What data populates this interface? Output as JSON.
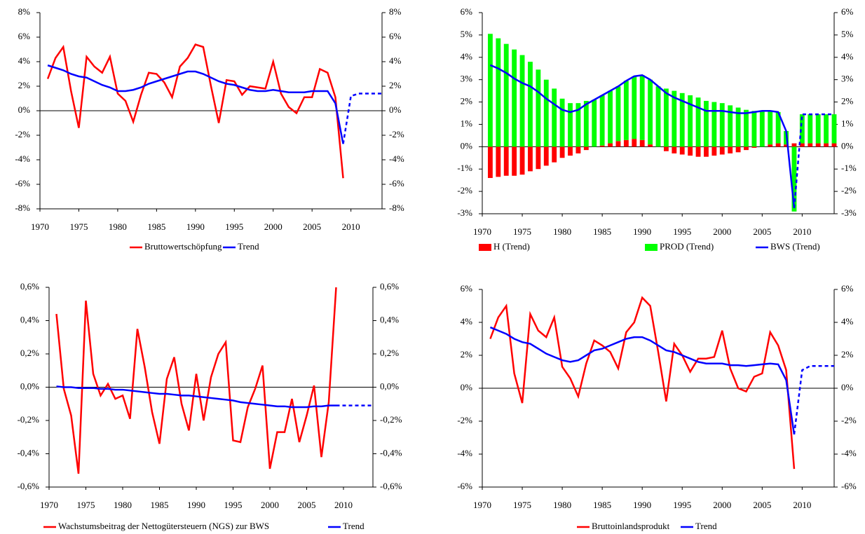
{
  "chart_data": [
    {
      "type": "line",
      "x": [
        1971,
        1972,
        1973,
        1974,
        1975,
        1976,
        1977,
        1978,
        1979,
        1980,
        1981,
        1982,
        1983,
        1984,
        1985,
        1986,
        1987,
        1988,
        1989,
        1990,
        1991,
        1992,
        1993,
        1994,
        1995,
        1996,
        1997,
        1998,
        1999,
        2000,
        2001,
        2002,
        2003,
        2004,
        2005,
        2006,
        2007,
        2008,
        2009,
        2010,
        2011,
        2012,
        2013,
        2014
      ],
      "xlim": [
        1970,
        2014
      ],
      "xticks": [
        1970,
        1975,
        1980,
        1985,
        1990,
        1995,
        2000,
        2005,
        2010
      ],
      "ylim": [
        -8,
        8
      ],
      "yticks": [
        {
          "value": -8,
          "label": "-8%"
        },
        {
          "value": -6,
          "label": "-6%"
        },
        {
          "value": -4,
          "label": "-4%"
        },
        {
          "value": -2,
          "label": "-2%"
        },
        {
          "value": 0,
          "label": "0%"
        },
        {
          "value": 2,
          "label": "2%"
        },
        {
          "value": 4,
          "label": "4%"
        },
        {
          "value": 6,
          "label": "6%"
        },
        {
          "value": 8,
          "label": "8%"
        }
      ],
      "series": [
        {
          "name": "Bruttowertschöpfung",
          "color": "#ff0000",
          "values": [
            2.6,
            4.3,
            5.2,
            1.6,
            -1.4,
            4.4,
            3.6,
            3.1,
            4.4,
            1.4,
            0.8,
            -0.9,
            1.3,
            3.1,
            3.0,
            2.3,
            1.1,
            3.6,
            4.3,
            5.4,
            5.2,
            2.0,
            -1.0,
            2.5,
            2.4,
            1.3,
            2.0,
            1.9,
            1.8,
            4.0,
            1.4,
            0.3,
            -0.2,
            1.1,
            1.1,
            3.4,
            3.1,
            1.1,
            -5.5,
            null,
            null,
            null,
            null,
            null
          ]
        },
        {
          "name": "Trend",
          "color": "#0000ff",
          "dashed_from_x": 2009,
          "values": [
            3.7,
            3.5,
            3.3,
            3.0,
            2.8,
            2.7,
            2.4,
            2.1,
            1.9,
            1.6,
            1.6,
            1.7,
            1.9,
            2.2,
            2.4,
            2.6,
            2.8,
            3.0,
            3.2,
            3.2,
            3.0,
            2.7,
            2.4,
            2.2,
            2.1,
            1.9,
            1.7,
            1.6,
            1.6,
            1.7,
            1.6,
            1.5,
            1.5,
            1.5,
            1.6,
            1.6,
            1.6,
            0.6,
            -2.7,
            1.2,
            1.4,
            1.4,
            1.4,
            1.4
          ]
        }
      ]
    },
    {
      "type": "bar",
      "x": [
        1971,
        1972,
        1973,
        1974,
        1975,
        1976,
        1977,
        1978,
        1979,
        1980,
        1981,
        1982,
        1983,
        1984,
        1985,
        1986,
        1987,
        1988,
        1989,
        1990,
        1991,
        1992,
        1993,
        1994,
        1995,
        1996,
        1997,
        1998,
        1999,
        2000,
        2001,
        2002,
        2003,
        2004,
        2005,
        2006,
        2007,
        2008,
        2009,
        2010,
        2011,
        2012,
        2013,
        2014
      ],
      "xlim": [
        1970,
        2014
      ],
      "xticks": [
        1970,
        1975,
        1980,
        1985,
        1990,
        1995,
        2000,
        2005,
        2010
      ],
      "ylim": [
        -3,
        6
      ],
      "yticks": [
        {
          "value": -3,
          "label": "-3%"
        },
        {
          "value": -2,
          "label": "-2%"
        },
        {
          "value": -1,
          "label": "-1%"
        },
        {
          "value": 0,
          "label": "0%"
        },
        {
          "value": 1,
          "label": "1%"
        },
        {
          "value": 2,
          "label": "2%"
        },
        {
          "value": 3,
          "label": "3%"
        },
        {
          "value": 4,
          "label": "4%"
        },
        {
          "value": 5,
          "label": "5%"
        },
        {
          "value": 6,
          "label": "6%"
        }
      ],
      "series": [
        {
          "name": "H (Trend)",
          "color": "#ff0000",
          "type": "bar",
          "values": [
            -1.4,
            -1.35,
            -1.3,
            -1.3,
            -1.25,
            -1.1,
            -1.0,
            -0.85,
            -0.7,
            -0.5,
            -0.4,
            -0.3,
            -0.15,
            0,
            0.05,
            0.15,
            0.25,
            0.3,
            0.35,
            0.3,
            0.1,
            0,
            -0.2,
            -0.3,
            -0.35,
            -0.4,
            -0.45,
            -0.45,
            -0.4,
            -0.35,
            -0.3,
            -0.25,
            -0.15,
            -0.05,
            0,
            0.1,
            0.15,
            0.1,
            0.15,
            0.15,
            0.15,
            0.15,
            0.15,
            0.15
          ]
        },
        {
          "name": "PROD (Trend)",
          "color": "#00ff00",
          "type": "bar",
          "values": [
            5.05,
            4.85,
            4.6,
            4.35,
            4.1,
            3.8,
            3.45,
            3.0,
            2.6,
            2.15,
            1.95,
            1.95,
            2.05,
            2.1,
            2.25,
            2.35,
            2.45,
            2.65,
            2.8,
            2.9,
            2.9,
            2.7,
            2.6,
            2.5,
            2.4,
            2.3,
            2.2,
            2.05,
            2.0,
            1.95,
            1.85,
            1.75,
            1.65,
            1.6,
            1.6,
            1.5,
            1.4,
            0.6,
            -2.9,
            1.3,
            1.3,
            1.3,
            1.3,
            1.3
          ]
        },
        {
          "name": "BWS (Trend)",
          "color": "#0000ff",
          "type": "line",
          "dashed_from_x": 2009,
          "values": [
            3.65,
            3.5,
            3.3,
            3.05,
            2.85,
            2.7,
            2.45,
            2.15,
            1.9,
            1.65,
            1.55,
            1.65,
            1.9,
            2.1,
            2.3,
            2.5,
            2.7,
            2.95,
            3.15,
            3.2,
            3.0,
            2.7,
            2.4,
            2.2,
            2.05,
            1.9,
            1.75,
            1.6,
            1.6,
            1.6,
            1.55,
            1.5,
            1.5,
            1.55,
            1.6,
            1.6,
            1.55,
            0.7,
            -2.75,
            1.45,
            1.45,
            1.45,
            1.45,
            1.45
          ]
        }
      ]
    },
    {
      "type": "line",
      "x": [
        1971,
        1972,
        1973,
        1974,
        1975,
        1976,
        1977,
        1978,
        1979,
        1980,
        1981,
        1982,
        1983,
        1984,
        1985,
        1986,
        1987,
        1988,
        1989,
        1990,
        1991,
        1992,
        1993,
        1994,
        1995,
        1996,
        1997,
        1998,
        1999,
        2000,
        2001,
        2002,
        2003,
        2004,
        2005,
        2006,
        2007,
        2008,
        2009,
        2010,
        2011,
        2012,
        2013,
        2014
      ],
      "xlim": [
        1970,
        2014
      ],
      "xticks": [
        1970,
        1975,
        1980,
        1985,
        1990,
        1995,
        2000,
        2005,
        2010
      ],
      "ylim": [
        -0.6,
        0.6
      ],
      "yticks": [
        {
          "value": -0.6,
          "label": "-0,6%"
        },
        {
          "value": -0.4,
          "label": "-0,4%"
        },
        {
          "value": -0.2,
          "label": "-0,2%"
        },
        {
          "value": 0,
          "label": "0,0%"
        },
        {
          "value": 0.2,
          "label": "0,2%"
        },
        {
          "value": 0.4,
          "label": "0,4%"
        },
        {
          "value": 0.6,
          "label": "0,6%"
        }
      ],
      "series": [
        {
          "name": "Wachstumsbeitrag der Nettogütersteuern (NGS) zur BWS",
          "color": "#ff0000",
          "values": [
            0.44,
            -0.01,
            -0.17,
            -0.52,
            0.52,
            0.08,
            -0.05,
            0.02,
            -0.07,
            -0.05,
            -0.19,
            0.35,
            0.12,
            -0.15,
            -0.34,
            0.05,
            0.18,
            -0.1,
            -0.26,
            0.08,
            -0.2,
            0.06,
            0.2,
            0.27,
            -0.32,
            -0.33,
            -0.12,
            -0.01,
            0.13,
            -0.49,
            -0.27,
            -0.27,
            -0.07,
            -0.33,
            -0.17,
            0.01,
            -0.42,
            -0.09,
            0.6,
            null,
            null,
            null,
            null,
            null
          ]
        },
        {
          "name": "Trend",
          "color": "#0000ff",
          "dashed_from_x": 2009,
          "values": [
            0.005,
            0,
            0,
            -0.005,
            -0.005,
            -0.005,
            -0.01,
            -0.01,
            -0.015,
            -0.015,
            -0.02,
            -0.025,
            -0.03,
            -0.035,
            -0.04,
            -0.04,
            -0.045,
            -0.05,
            -0.05,
            -0.055,
            -0.06,
            -0.065,
            -0.07,
            -0.075,
            -0.08,
            -0.09,
            -0.095,
            -0.1,
            -0.105,
            -0.11,
            -0.115,
            -0.115,
            -0.12,
            -0.12,
            -0.12,
            -0.115,
            -0.115,
            -0.11,
            -0.11,
            -0.11,
            -0.11,
            -0.11,
            -0.11,
            -0.11
          ]
        }
      ]
    },
    {
      "type": "line",
      "x": [
        1971,
        1972,
        1973,
        1974,
        1975,
        1976,
        1977,
        1978,
        1979,
        1980,
        1981,
        1982,
        1983,
        1984,
        1985,
        1986,
        1987,
        1988,
        1989,
        1990,
        1991,
        1992,
        1993,
        1994,
        1995,
        1996,
        1997,
        1998,
        1999,
        2000,
        2001,
        2002,
        2003,
        2004,
        2005,
        2006,
        2007,
        2008,
        2009,
        2010,
        2011,
        2012,
        2013,
        2014
      ],
      "xlim": [
        1970,
        2014
      ],
      "xticks": [
        1970,
        1975,
        1980,
        1985,
        1990,
        1995,
        2000,
        2005,
        2010
      ],
      "ylim": [
        -6,
        6
      ],
      "yticks": [
        {
          "value": -6,
          "label": "-6%"
        },
        {
          "value": -4,
          "label": "-4%"
        },
        {
          "value": -2,
          "label": "-2%"
        },
        {
          "value": 0,
          "label": "0%"
        },
        {
          "value": 2,
          "label": "2%"
        },
        {
          "value": 4,
          "label": "4%"
        },
        {
          "value": 6,
          "label": "6%"
        }
      ],
      "series": [
        {
          "name": "Bruttoinlandsprodukt",
          "color": "#ff0000",
          "values": [
            3.0,
            4.3,
            5.0,
            0.9,
            -0.9,
            4.5,
            3.5,
            3.1,
            4.3,
            1.3,
            0.6,
            -0.5,
            1.5,
            2.9,
            2.6,
            2.2,
            1.2,
            3.4,
            4.0,
            5.5,
            5.0,
            2.2,
            -0.8,
            2.7,
            2.0,
            1.0,
            1.8,
            1.8,
            1.9,
            3.5,
            1.2,
            0.0,
            -0.2,
            0.7,
            0.9,
            3.4,
            2.6,
            1.1,
            -4.9,
            null,
            null,
            null,
            null,
            null
          ]
        },
        {
          "name": "Trend",
          "color": "#0000ff",
          "dashed_from_x": 2009,
          "values": [
            3.7,
            3.5,
            3.3,
            3.0,
            2.8,
            2.7,
            2.4,
            2.1,
            1.9,
            1.7,
            1.6,
            1.7,
            2.0,
            2.3,
            2.4,
            2.6,
            2.8,
            3.0,
            3.1,
            3.1,
            2.9,
            2.6,
            2.3,
            2.2,
            2.0,
            1.8,
            1.6,
            1.5,
            1.5,
            1.5,
            1.4,
            1.4,
            1.35,
            1.4,
            1.45,
            1.5,
            1.45,
            0.5,
            -2.8,
            1.1,
            1.35,
            1.35,
            1.35,
            1.35
          ]
        }
      ]
    }
  ]
}
